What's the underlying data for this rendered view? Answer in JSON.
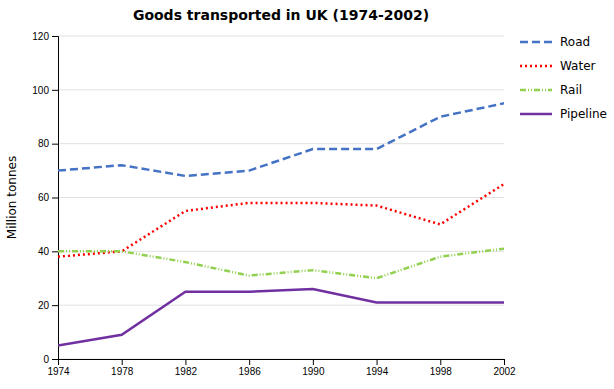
{
  "chart_data": {
    "type": "line",
    "title": "Goods transported in UK (1974-2002)",
    "ylabel": "Million tonnes",
    "x": [
      1974,
      1978,
      1982,
      1986,
      1990,
      1994,
      1998,
      2002
    ],
    "xlim": [
      1974,
      2002
    ],
    "xticks": [
      1974,
      1978,
      1982,
      1986,
      1990,
      1994,
      1998,
      2002
    ],
    "ylim": [
      0,
      120
    ],
    "yticks": [
      0,
      20,
      40,
      60,
      80,
      100,
      120
    ],
    "grid": true,
    "legend": "right",
    "series": [
      {
        "name": "Road",
        "color": "#4472C4",
        "line_style": "dashed",
        "values": [
          70,
          72,
          68,
          70,
          78,
          78,
          90,
          95
        ]
      },
      {
        "name": "Water",
        "color": "#FF0000",
        "line_style": "dotted",
        "values": [
          38,
          40,
          55,
          58,
          58,
          57,
          50,
          65
        ]
      },
      {
        "name": "Rail",
        "color": "#92D050",
        "line_style": "dashdot",
        "values": [
          40,
          40,
          36,
          31,
          33,
          30,
          38,
          41
        ]
      },
      {
        "name": "Pipeline",
        "color": "#7030A0",
        "line_style": "solid",
        "values": [
          5,
          9,
          25,
          25,
          26,
          21,
          21,
          21
        ]
      }
    ]
  }
}
